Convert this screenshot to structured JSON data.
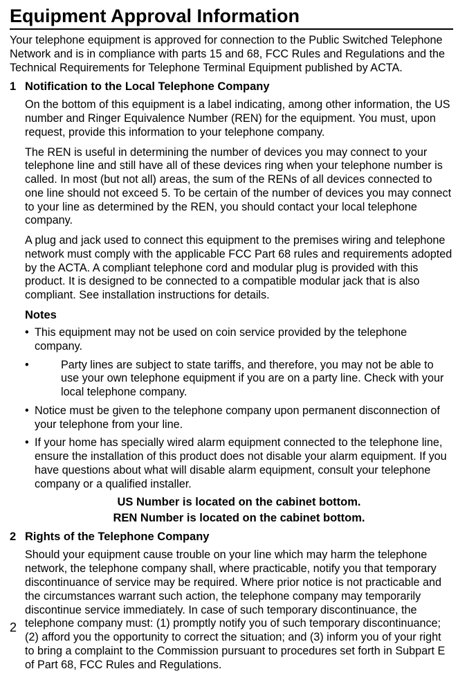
{
  "title": "Equipment Approval Information",
  "intro": "Your telephone equipment is approved for connection to the Public Switched Telephone Network and is in compliance with parts 15 and 68, FCC Rules and Regulations and the Technical Requirements for Telephone Terminal Equipment published by ACTA.",
  "section1": {
    "num": "1",
    "heading": "Notification to the Local Telephone Company",
    "p1": "On the bottom of this equipment is a label indicating, among other information, the US number and Ringer Equivalence Number (REN) for the equipment. You must, upon request, provide this information to your telephone company.",
    "p2": "The REN is useful in determining the number of devices you may connect to your telephone line and still have all of these devices ring when your telephone number is called. In most (but not all) areas, the sum of the RENs of all devices connected to one line should not exceed 5. To be certain of the number of devices you may connect to your line as determined by the REN, you should contact your local telephone company.",
    "p3": "A plug and jack used to connect this equipment to the premises wiring and telephone network must comply with the applicable FCC Part 68 rules and requirements adopted by the ACTA. A compliant telephone cord and modular plug is provided with this product. It is designed to be connected to a compatible modular jack that is also compliant. See installation instructions for details.",
    "notesLabel": "Notes",
    "b1": "This equipment may not be used on coin service provided by the telephone company.",
    "b2": "Party lines are subject to state tariffs, and therefore, you may not be able to use your own telephone equipment if you are on a party line. Check with your local telephone company.",
    "b3": "Notice must be given to the telephone company upon permanent disconnection of your telephone from your line.",
    "b4": "If your home has specially wired alarm equipment connected to the telephone line, ensure the installation of this product does not disable your alarm equipment. If you have questions about what will disable alarm equipment, consult your telephone company or a qualified installer.",
    "center1": "US Number is located on the cabinet bottom.",
    "center2": "REN Number is located on the cabinet bottom."
  },
  "section2": {
    "num": "2",
    "heading": "Rights of the Telephone Company",
    "p1": "Should your equipment cause trouble on your line which may harm the telephone network, the telephone company shall, where practicable, notify you that temporary discontinuance of service may be required. Where prior notice is not practicable and the circumstances warrant such action, the telephone company may temporarily discontinue service immediately. In case of such temporary discontinuance, the telephone company must: (1) promptly notify you of such temporary discontinuance; (2) afford you the opportunity to correct the situation; and (3) inform you of your right to bring a complaint to the Commission pursuant to procedures set forth in Subpart E of Part 68, FCC Rules and Regulations."
  },
  "pageNum": "2",
  "bulletChar": "•"
}
